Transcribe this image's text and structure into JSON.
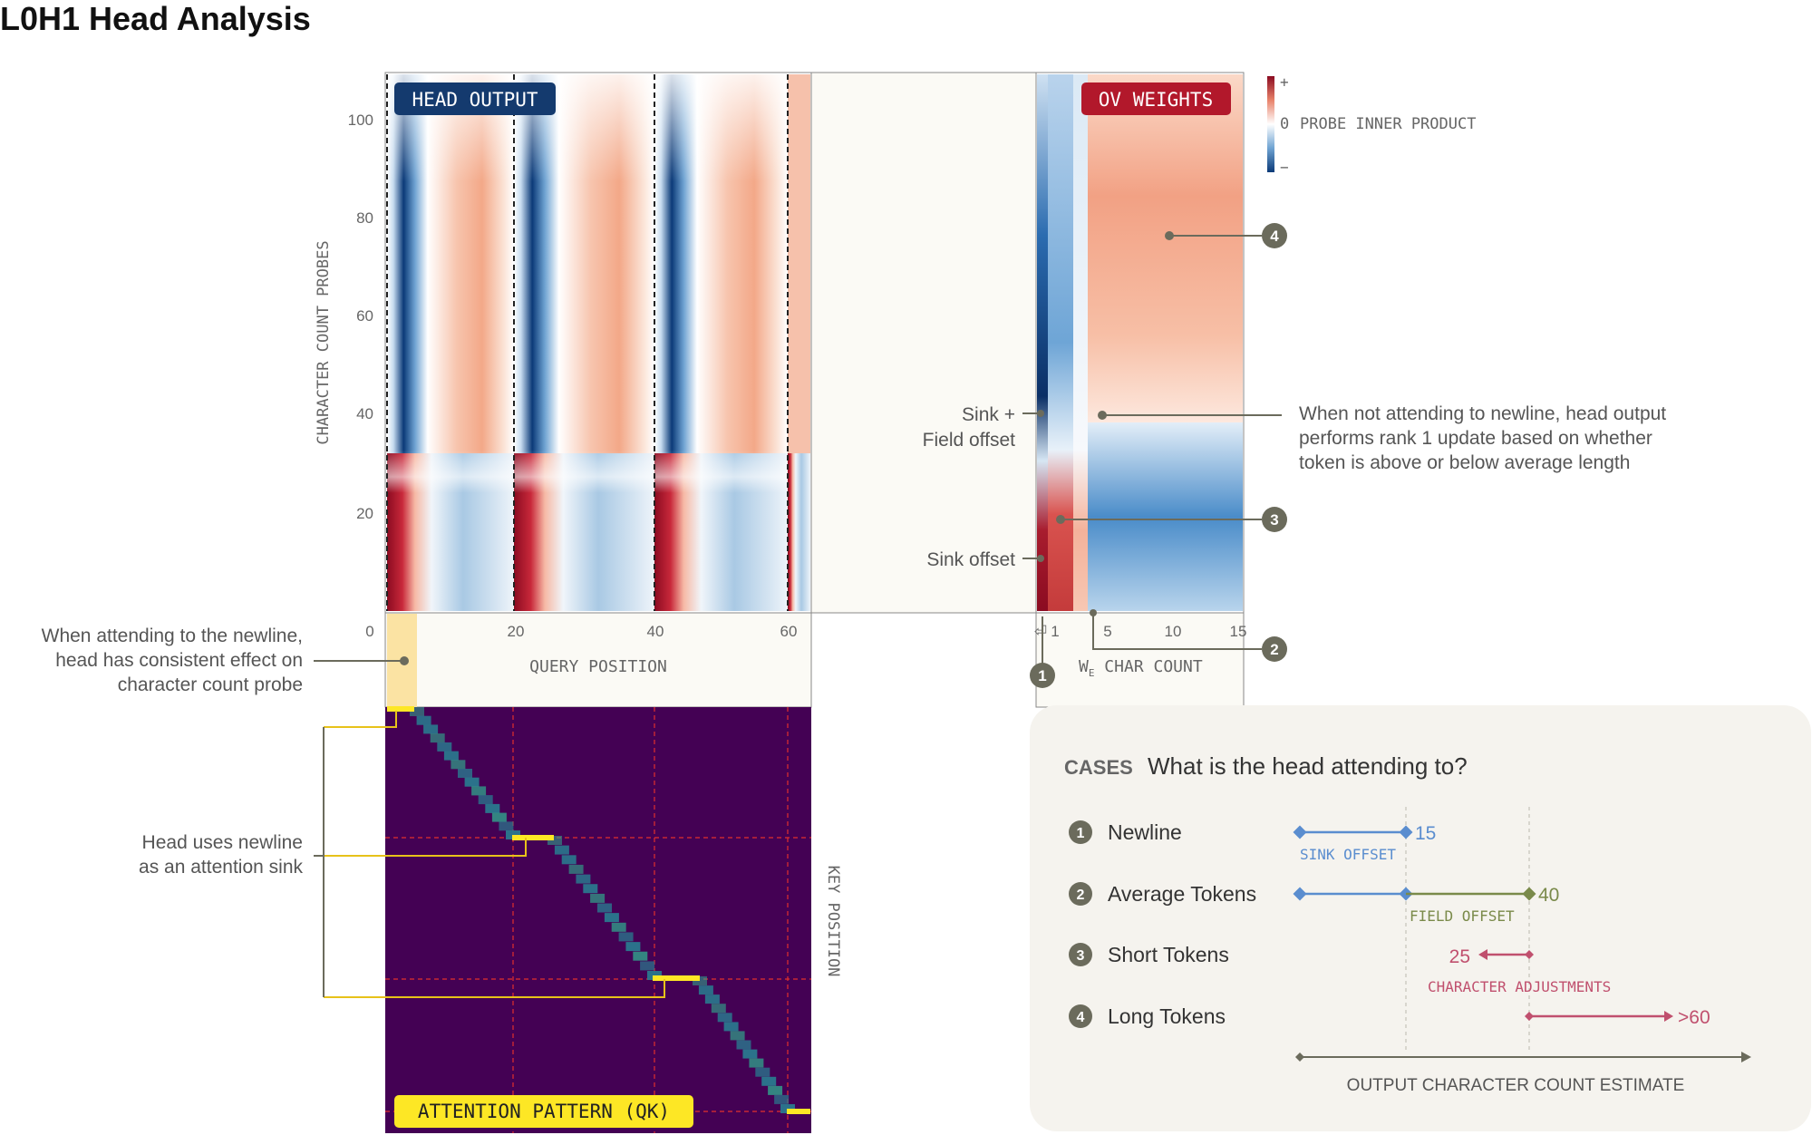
{
  "title": "L0H1 Head Analysis",
  "colors": {
    "red": "#b2182b",
    "blue": "#1b4f8c",
    "navy": "#143a6e",
    "accent_dark": "#6b6b5c",
    "sink_blue": "#5a8dcf",
    "field_green": "#7a8a4a",
    "adjust_pink": "#c0506e",
    "attention_bg": "#440154",
    "attention_yellow": "#fde725",
    "panel_bg": "#f5f3ee"
  },
  "head_output": {
    "badge": "HEAD OUTPUT",
    "y_axis_label": "CHARACTER COUNT PROBES",
    "y_ticks": [
      "100",
      "80",
      "60",
      "40",
      "20"
    ],
    "x_axis_label": "QUERY POSITION",
    "x_ticks": [
      "0",
      "20",
      "40",
      "60"
    ]
  },
  "ov_weights": {
    "badge": "OV WEIGHTS",
    "x_axis_label": "W",
    "x_axis_subscript": "E",
    "x_axis_label_rest": " CHAR COUNT",
    "x_ticks": [
      "⏎",
      "1",
      "5",
      "10",
      "15"
    ],
    "label_sink_field_1": "Sink +",
    "label_sink_field_2": "Field offset",
    "label_sink": "Sink offset"
  },
  "colorbar": {
    "plus": "+",
    "zero": "0",
    "minus": "−",
    "label": "PROBE INNER PRODUCT"
  },
  "annotations": {
    "rank1": [
      "When not attending to newline, head output",
      "performs rank 1 update based on whether",
      "token is above or below average length"
    ],
    "newline_effect": [
      "When attending to the newline,",
      "head has consistent effect on",
      "character count probe"
    ],
    "sink": [
      "Head uses newline",
      "as an attention sink"
    ],
    "markers": [
      "1",
      "2",
      "3",
      "4"
    ]
  },
  "attention": {
    "badge": "ATTENTION PATTERN (QK)",
    "side_label": "KEY POSITION"
  },
  "cases": {
    "heading_tag": "CASES",
    "heading": "What is the head attending to?",
    "items": [
      {
        "num": "1",
        "label": "Newline"
      },
      {
        "num": "2",
        "label": "Average Tokens"
      },
      {
        "num": "3",
        "label": "Short Tokens"
      },
      {
        "num": "4",
        "label": "Long Tokens"
      }
    ],
    "values": {
      "sink_end": "15",
      "field_end": "40",
      "short_end": "25",
      "long_end": ">60"
    },
    "range_labels": {
      "sink": "SINK OFFSET",
      "field": "FIELD OFFSET",
      "adjust": "CHARACTER ADJUSTMENTS"
    },
    "axis_label": "OUTPUT CHARACTER COUNT ESTIMATE"
  }
}
